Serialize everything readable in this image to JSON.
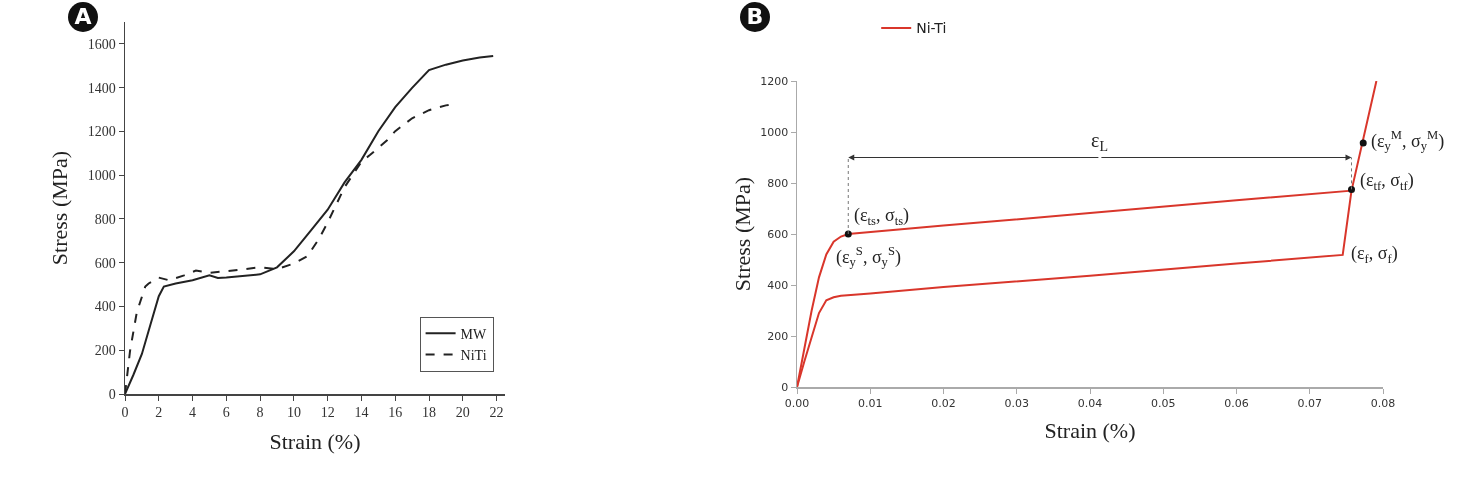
{
  "chart_data": [
    {
      "type": "line",
      "title": "A",
      "xlabel": "Strain (%)",
      "ylabel": "Stress (MPa)",
      "xlim": [
        0,
        22.5
      ],
      "xticks": [
        0,
        2,
        4,
        6,
        8,
        10,
        12,
        14,
        16,
        18,
        20,
        22
      ],
      "ylim": [
        0,
        1700
      ],
      "yticks": [
        0,
        200,
        400,
        600,
        800,
        1000,
        1200,
        1400,
        1600
      ],
      "grid": false,
      "legend": "bottom right",
      "series": [
        {
          "name": "MW",
          "color": "#222222",
          "line_style": "solid",
          "x": [
            0,
            0.5,
            1,
            1.5,
            2,
            2.3,
            3,
            4,
            5,
            5.5,
            6,
            8,
            9,
            10,
            11,
            12,
            13,
            14,
            15,
            16,
            17,
            18,
            19,
            20,
            21,
            21.8
          ],
          "values": [
            0,
            88,
            183,
            315,
            447,
            491,
            505,
            520,
            542,
            530,
            532,
            547,
            579,
            652,
            747,
            842,
            967,
            1070,
            1201,
            1311,
            1399,
            1480,
            1505,
            1524,
            1538,
            1545
          ]
        },
        {
          "name": "NiTi",
          "color": "#222222",
          "line_style": "dashed",
          "x": [
            0,
            0.3,
            0.7,
            1.2,
            1.4,
            2,
            2.6,
            3.5,
            4.2,
            5,
            6,
            8,
            9,
            10,
            10.8,
            11.5,
            12,
            13,
            14,
            14.5,
            15.5,
            16,
            17,
            18,
            19,
            19.3
          ],
          "values": [
            0,
            198,
            374,
            491,
            505,
            532,
            520,
            542,
            564,
            554,
            561,
            579,
            571,
            596,
            630,
            711,
            784,
            945,
            1062,
            1092,
            1158,
            1201,
            1260,
            1297,
            1319,
            1323
          ]
        }
      ]
    },
    {
      "type": "line",
      "title": "B",
      "xlabel": "Strain (%)",
      "ylabel": "Stress (MPa)",
      "xlim": [
        0,
        0.08
      ],
      "xticks": [
        {
          "value": 0,
          "label": "0.00"
        },
        0.01,
        0.02,
        0.03,
        0.04,
        0.05,
        0.06,
        0.07,
        {
          "value": 0.08,
          "label": "0.08"
        }
      ],
      "ylim": [
        0,
        1200
      ],
      "yticks": [
        0,
        200,
        400,
        600,
        800,
        1000,
        1200
      ],
      "grid": false,
      "legend": "top",
      "series": [
        {
          "name": "Ni-Ti",
          "color": "#d9362b",
          "line_style": "solid",
          "x": [
            0,
            0.001,
            0.002,
            0.003,
            0.004,
            0.005,
            0.006,
            0.007,
            0.02,
            0.04,
            0.06,
            0.0757,
            0.0791
          ],
          "values": [
            0,
            150,
            300,
            430,
            520,
            570,
            590,
            600,
            633,
            682,
            732,
            770,
            1200
          ]
        },
        {
          "color": "#d9362b",
          "line_style": "solid",
          "x": [
            0,
            0.001,
            0.002,
            0.003,
            0.004,
            0.005,
            0.006,
            0.01,
            0.02,
            0.04,
            0.06,
            0.0745,
            0.0757
          ],
          "values": [
            0,
            100,
            195,
            290,
            340,
            352,
            358,
            367,
            392,
            436,
            484,
            518,
            770
          ]
        },
        {
          "type": "scatter",
          "color": "#111111",
          "marker": "circle",
          "x": [
            0.007,
            0.0757,
            0.0773
          ],
          "values": [
            600,
            775,
            957
          ]
        }
      ],
      "annotations": [
        "ε$_{L}$",
        {
          "text": "(ε$_{ts}$, σ$_{ts}$)",
          "x": 0.007,
          "y": 600
        },
        {
          "text": "(ε$_{y}$$^{S}$, σ$_{y}$$^{S}$)",
          "x": 0.007,
          "y": 600
        },
        {
          "text": "(ε$_{tf}$, σ$_{tf}$)",
          "x": 0.0757,
          "y": 775
        },
        {
          "text": "(ε$_{y}$$^{M}$, σ$_{y}$$^{M}$)",
          "x": 0.0773,
          "y": 957
        },
        {
          "text": "(ε$_{f}$, σ$_{f}$)",
          "x": 0.0745,
          "y": 518
        }
      ]
    }
  ]
}
